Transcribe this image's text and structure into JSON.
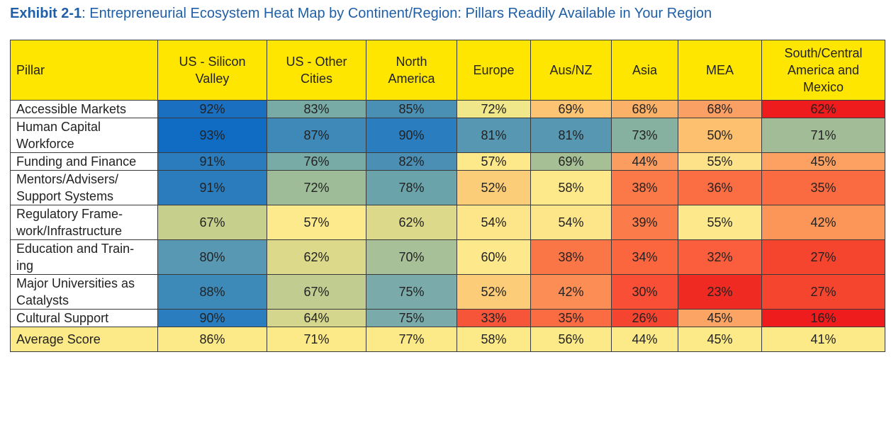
{
  "title": {
    "label": "Exhibit 2-1",
    "text": ": Entrepreneurial Ecosystem Heat Map by Continent/Region: Pillars Readily Available in Your Region"
  },
  "table": {
    "header": [
      "Pillar",
      "US - Silicon\nValley",
      "US - Other\nCities",
      "North\nAmerica",
      "Europe",
      "Aus/NZ",
      "Asia",
      "MEA",
      "South/Central\nAmerica and\nMexico"
    ],
    "column_widths": [
      208,
      154,
      140,
      128,
      104,
      114,
      94,
      118,
      174
    ],
    "header_color": "#ffe600",
    "rows": [
      [
        "Accessible Markets",
        "92%",
        "83%",
        "85%",
        "72%",
        "69%",
        "68%",
        "68%",
        "62%"
      ],
      [
        "Human Capital\nWorkforce",
        "93%",
        "87%",
        "90%",
        "81%",
        "81%",
        "73%",
        "50%",
        "71%"
      ],
      [
        "Funding and Finance",
        "91%",
        "76%",
        "82%",
        "57%",
        "69%",
        "44%",
        "55%",
        "45%"
      ],
      [
        "Mentors/Advisers/\nSupport Systems",
        "91%",
        "72%",
        "78%",
        "52%",
        "58%",
        "38%",
        "36%",
        "35%"
      ],
      [
        "Regulatory Frame-\nwork/Infrastructure",
        "67%",
        "57%",
        "62%",
        "54%",
        "54%",
        "39%",
        "55%",
        "42%"
      ],
      [
        "Education and Train-\ning",
        "80%",
        "62%",
        "70%",
        "60%",
        "38%",
        "34%",
        "32%",
        "27%"
      ],
      [
        "Major Universities as\nCatalysts",
        "88%",
        "67%",
        "75%",
        "52%",
        "42%",
        "30%",
        "23%",
        "27%"
      ],
      [
        "Cultural Support",
        "90%",
        "64%",
        "75%",
        "33%",
        "35%",
        "26%",
        "45%",
        "16%"
      ]
    ],
    "cell_colors": [
      [
        "#1b6fc0",
        "#78aaa6",
        "#4a90b4",
        "#f0e68a",
        "#fdc473",
        "#fbb168",
        "#fba065",
        "#ee1c1c"
      ],
      [
        "#0f6cc2",
        "#3f89b8",
        "#2a7dbe",
        "#5897b2",
        "#5897b2",
        "#86b0a0",
        "#fdc06e",
        "#a2bc98"
      ],
      [
        "#2a7cbd",
        "#78aaa6",
        "#4b8fb5",
        "#fde88a",
        "#a6bf94",
        "#fb9d60",
        "#fde28a",
        "#fca162"
      ],
      [
        "#2a7cbd",
        "#9ebc98",
        "#6aa3aa",
        "#fccd78",
        "#fde88a",
        "#fb7848",
        "#fb6e44",
        "#fb6b42"
      ],
      [
        "#c7cf8c",
        "#fdea8c",
        "#dcd98a",
        "#fde58a",
        "#fde58a",
        "#fb7c4a",
        "#fde88c",
        "#fc9558"
      ],
      [
        "#5998b3",
        "#dcd98a",
        "#a7c097",
        "#fde98c",
        "#fb7646",
        "#fb663f",
        "#fb5e3c",
        "#f5452f"
      ],
      [
        "#3d89b8",
        "#c0cc90",
        "#7aabaa",
        "#fccc78",
        "#fb8d55",
        "#f94f36",
        "#ee2a22",
        "#f5452f"
      ],
      [
        "#2a7dbe",
        "#d3d68c",
        "#7aabaa",
        "#f6553a",
        "#fb6c43",
        "#f54530",
        "#fca463",
        "#ee1c1c"
      ]
    ],
    "footer": [
      "Average Score",
      "86%",
      "71%",
      "77%",
      "58%",
      "56%",
      "44%",
      "45%",
      "41%"
    ],
    "footer_color": "#fcea88"
  }
}
